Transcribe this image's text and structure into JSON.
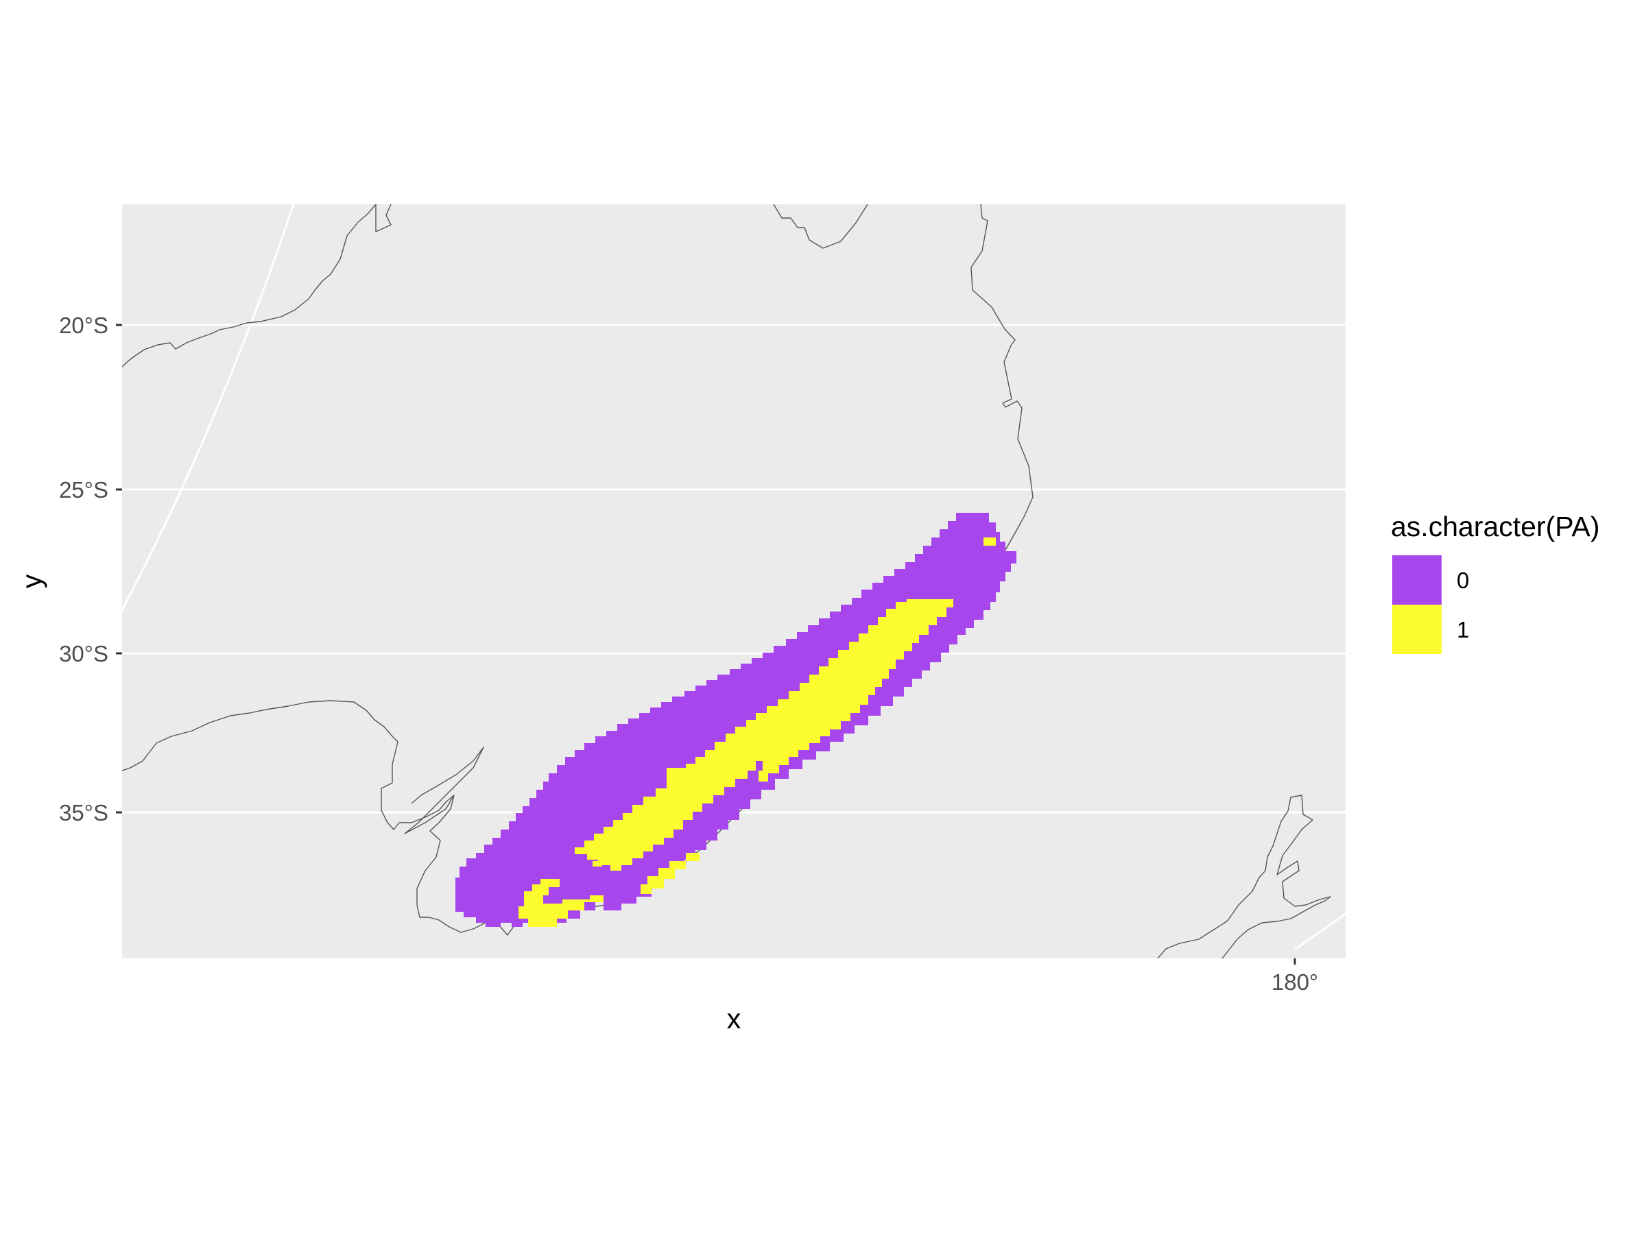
{
  "map": {
    "type": "raster-map",
    "x_axis_title": "x",
    "y_axis_title": "y",
    "x_ticks": [
      "180°"
    ],
    "y_ticks": [
      "20°S",
      "25°S",
      "30°S",
      "35°S"
    ],
    "legend": {
      "title": "as.character(PA)",
      "items": [
        {
          "label": "0",
          "color": "#A846EE"
        },
        {
          "label": "1",
          "color": "#FBFB2E"
        }
      ],
      "placement": "right"
    },
    "panel_background": "#EBEBEB",
    "grid_color": "#FFFFFF",
    "coastline_color": "#555555"
  },
  "chart_data": {
    "type": "heatmap",
    "title": "",
    "xlabel": "x",
    "ylabel": "y",
    "categories": [
      "0",
      "1"
    ],
    "ylim": [
      "38°S",
      "16°S"
    ],
    "y_ticks": [
      -20,
      -25,
      -30,
      -35
    ],
    "x_ticks": [
      180
    ],
    "grid": true,
    "legend_placement": "right"
  }
}
